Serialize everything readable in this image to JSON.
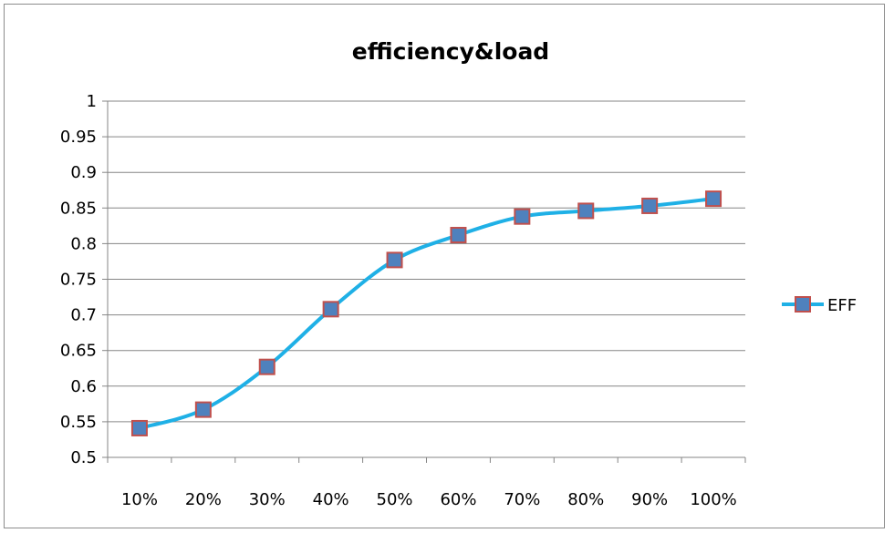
{
  "chart_data": {
    "type": "line",
    "title": "efficiency&load",
    "xlabel": "",
    "ylabel": "",
    "categories": [
      "10%",
      "20%",
      "30%",
      "40%",
      "50%",
      "60%",
      "70%",
      "80%",
      "90%",
      "100%"
    ],
    "series": [
      {
        "name": "EFF",
        "values": [
          0.541,
          0.567,
          0.627,
          0.708,
          0.777,
          0.812,
          0.838,
          0.846,
          0.853,
          0.863
        ]
      }
    ],
    "ylim": [
      0.5,
      1
    ],
    "yticks": [
      "0.5",
      "0.55",
      "0.6",
      "0.65",
      "0.7",
      "0.75",
      "0.8",
      "0.85",
      "0.9",
      "0.95",
      "1"
    ],
    "grid": "horizontal",
    "legend_position": "right",
    "colors": {
      "line": "#1fb0e6",
      "marker_fill": "#4f81bd",
      "marker_edge": "#c0504d",
      "gridline": "#868686",
      "axis": "#868686"
    }
  }
}
